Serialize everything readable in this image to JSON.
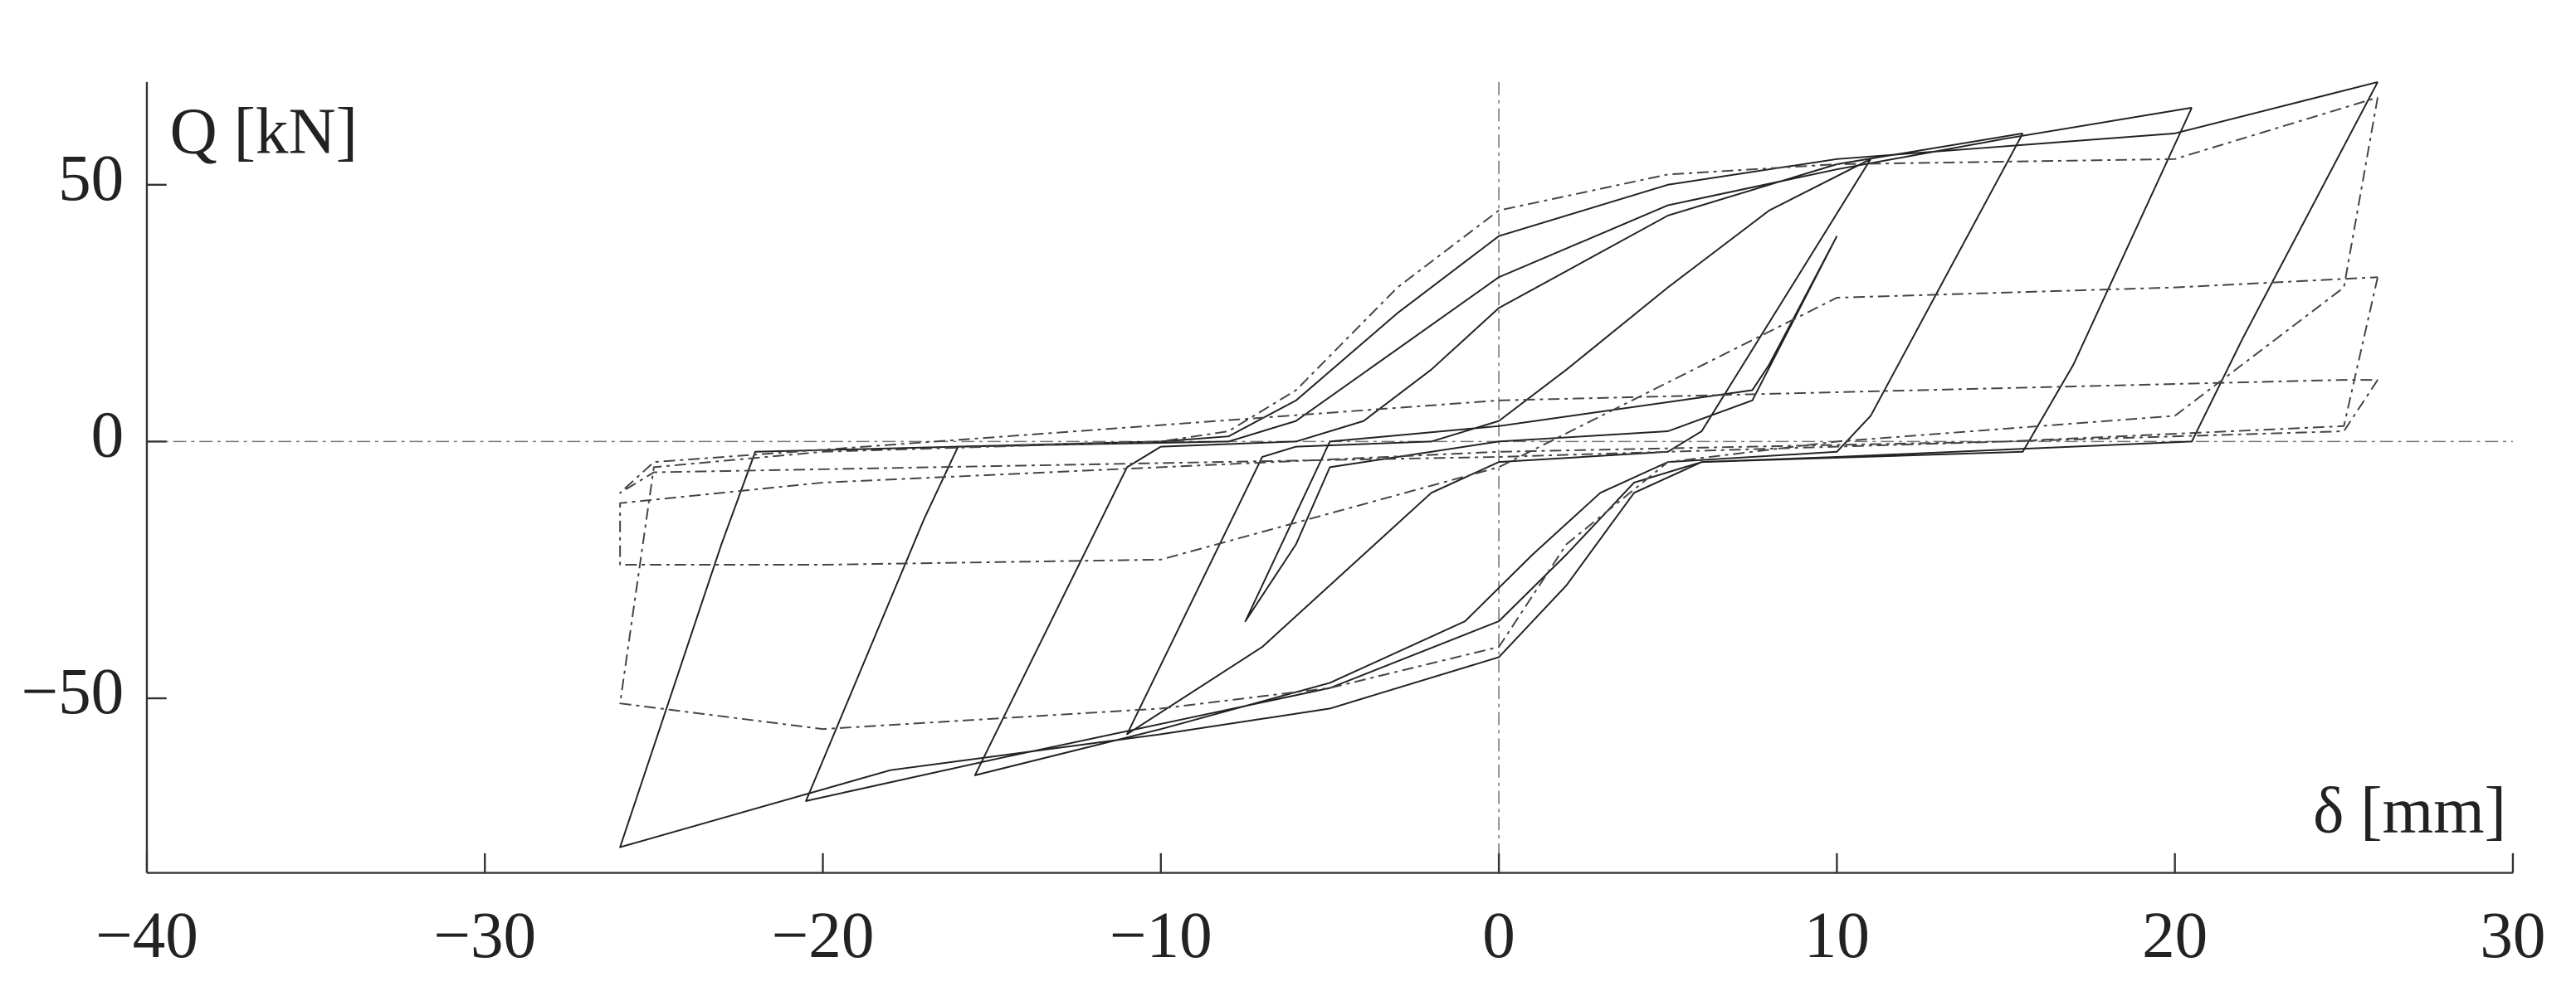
{
  "chart_data": {
    "type": "line",
    "ylabel": "Q [kN]",
    "xlabel": "δ [mm]",
    "xlim": [
      -40,
      30
    ],
    "ylim": [
      -84,
      70
    ],
    "xticks": [
      {
        "value": -40,
        "label": "−40"
      },
      {
        "value": -30,
        "label": "−30"
      },
      {
        "value": -20,
        "label": "−20"
      },
      {
        "value": -10,
        "label": "−10"
      },
      0,
      10,
      20,
      30
    ],
    "yticks": [
      {
        "value": -50,
        "label": "−50"
      },
      0,
      50
    ],
    "zero_lines": true,
    "series": [
      {
        "color": "#222222",
        "style": "solid",
        "x": [
          26,
          22,
          20.5,
          10,
          6,
          4,
          2,
          0,
          -5,
          -10,
          -18,
          -26,
          -23,
          -22,
          -10,
          -8,
          -6,
          -3,
          0,
          5,
          10,
          20,
          26
        ],
        "values": [
          70,
          20,
          0,
          -3,
          -4,
          -10,
          -28,
          -42,
          -52,
          -57,
          -64,
          -79,
          -20,
          -2,
          0,
          1,
          8,
          25,
          40,
          50,
          55,
          60,
          70
        ]
      },
      {
        "color": "#222222",
        "style": "solid",
        "x": [
          20.5,
          17,
          15.5,
          6,
          4,
          2,
          0,
          -5,
          -10,
          -15,
          -20.5,
          -17,
          -16,
          -8,
          -6,
          -3,
          0,
          5,
          10,
          15,
          20.5
        ],
        "values": [
          65,
          15,
          -2,
          -4,
          -8,
          -22,
          -35,
          -48,
          -55,
          -62,
          -70,
          -15,
          -1,
          0,
          4,
          18,
          32,
          46,
          53,
          59,
          65
        ]
      },
      {
        "color": "#222222",
        "style": "solid",
        "x": [
          15.5,
          11,
          10,
          5,
          3,
          1,
          -1,
          -5,
          -10,
          -15.5,
          -11,
          -10,
          -6,
          -4,
          -2,
          0,
          5,
          10,
          15.5
        ],
        "values": [
          60,
          5,
          -2,
          -4,
          -10,
          -22,
          -35,
          -47,
          -56,
          -65,
          -5,
          -1,
          0,
          4,
          14,
          26,
          44,
          54,
          60
        ]
      },
      {
        "color": "#222222",
        "style": "solid",
        "x": [
          11,
          6,
          5,
          0,
          -2,
          -4,
          -7,
          -11,
          -7,
          -6,
          -2,
          0,
          2,
          5,
          8,
          11
        ],
        "values": [
          55,
          2,
          -2,
          -4,
          -10,
          -22,
          -40,
          -57,
          -3,
          -1,
          0,
          4,
          14,
          30,
          45,
          55
        ]
      },
      {
        "color": "#222222",
        "style": "solid",
        "x": [
          10,
          8,
          7.5,
          0,
          -5,
          -7.5,
          -6,
          -5,
          0,
          5,
          7.5,
          10
        ],
        "values": [
          40,
          15,
          10,
          3,
          0,
          -35,
          -20,
          -5,
          0,
          2,
          8,
          40
        ]
      },
      {
        "color": "#444444",
        "style": "dashdot",
        "x": [
          26,
          25,
          20,
          10,
          5,
          2,
          0,
          -5,
          -10,
          -20,
          -26,
          -25,
          -20,
          -10,
          -8,
          -6,
          -3,
          0,
          5,
          10,
          20,
          26
        ],
        "values": [
          67,
          30,
          5,
          0,
          -4,
          -20,
          -40,
          -48,
          -52,
          -56,
          -51,
          -5,
          -2,
          0,
          2,
          10,
          30,
          45,
          52,
          54,
          55,
          67
        ]
      },
      {
        "color": "#444444",
        "style": "dashdot",
        "x": [
          26,
          25,
          15,
          0,
          -10,
          -20,
          -26,
          -26,
          -20,
          -10,
          0,
          10,
          20,
          26
        ],
        "values": [
          32,
          3,
          0,
          -2,
          -5,
          -8,
          -12,
          -24,
          -24,
          -23,
          -5,
          28,
          30,
          32
        ]
      },
      {
        "color": "#444444",
        "style": "dashdot",
        "x": [
          26,
          25,
          0,
          -25,
          -26,
          -25,
          0,
          25,
          26
        ],
        "values": [
          12,
          2,
          -3,
          -6,
          -10,
          -4,
          8,
          12,
          12
        ]
      }
    ]
  }
}
